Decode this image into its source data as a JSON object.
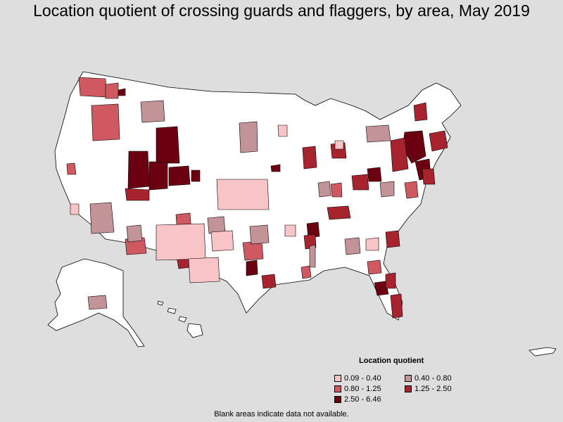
{
  "title": "Location quotient of crossing guards and flaggers, by area, May 2019",
  "legend": {
    "title": "Location quotient",
    "items": [
      {
        "label": "0.09 - 0.40",
        "color": "#f8c4c8"
      },
      {
        "label": "0.40 - 0.80",
        "color": "#c39497"
      },
      {
        "label": "0.80 - 1.25",
        "color": "#cf5960"
      },
      {
        "label": "1.25 - 2.50",
        "color": "#a7232d"
      },
      {
        "label": "2.50 - 6.46",
        "color": "#6b0010"
      }
    ]
  },
  "footnote": "Blank areas indicate data not available.",
  "colors": {
    "background": "#dedede",
    "no_data": "#ffffff",
    "border": "#000000"
  }
}
